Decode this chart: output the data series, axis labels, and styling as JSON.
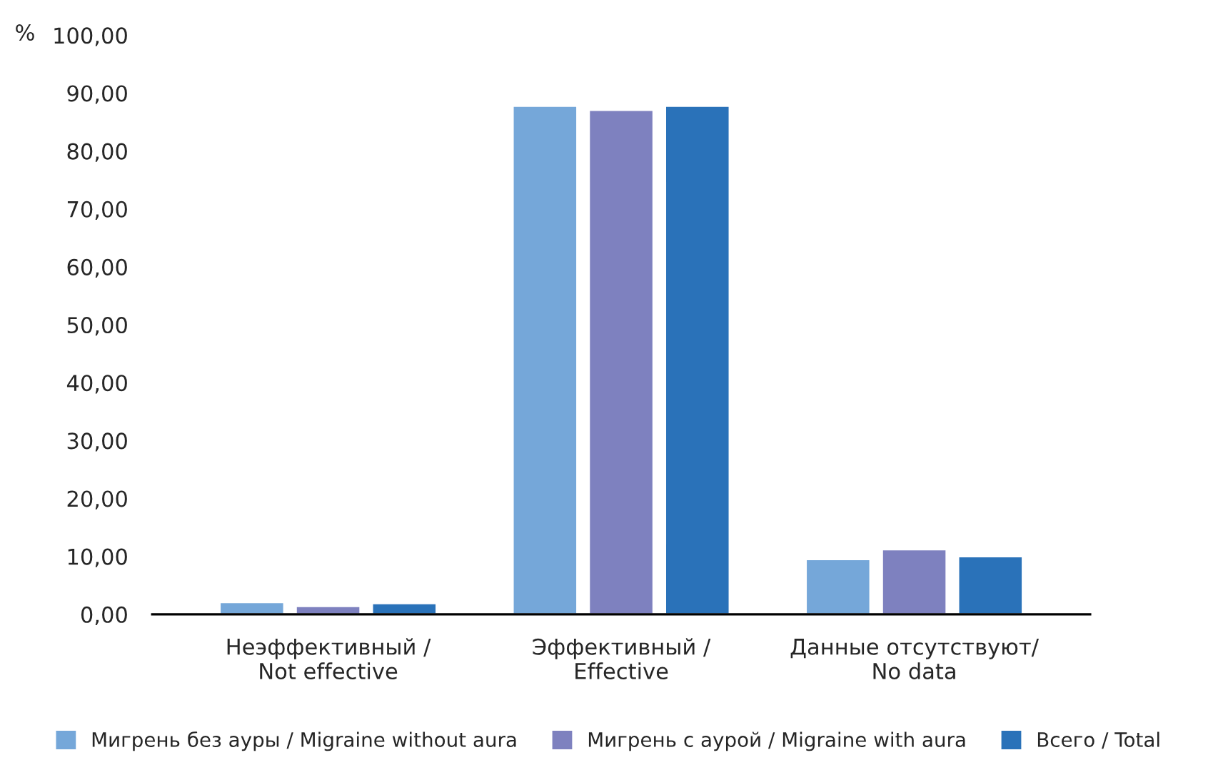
{
  "chart_data": {
    "type": "bar",
    "ylabel": "%",
    "categories": [
      "Неэффективный /\nNot effective",
      "Эффективный /\nEffective",
      "Данные отсутствуют/\nNo data"
    ],
    "series": [
      {
        "name": "Мигрень без ауры / Migraine without aura",
        "color": "#75a7d9",
        "values": [
          2.1,
          87.8,
          9.5
        ]
      },
      {
        "name": "Мигрень с аурой / Migraine with aura",
        "color": "#7e81bf",
        "values": [
          1.4,
          87.1,
          11.2
        ]
      },
      {
        "name": "Всего / Total",
        "color": "#2a72b9",
        "values": [
          1.9,
          87.8,
          10.0
        ]
      }
    ],
    "ylim": [
      0,
      100
    ],
    "yticks": [
      {
        "value": 0,
        "label": "0,00"
      },
      {
        "value": 10,
        "label": "10,00"
      },
      {
        "value": 20,
        "label": "20,00"
      },
      {
        "value": 30,
        "label": "30,00"
      },
      {
        "value": 40,
        "label": "40,00"
      },
      {
        "value": 50,
        "label": "50,00"
      },
      {
        "value": 60,
        "label": "60,00"
      },
      {
        "value": 70,
        "label": "70,00"
      },
      {
        "value": 80,
        "label": "80,00"
      },
      {
        "value": 90,
        "label": "90,00"
      },
      {
        "value": 100,
        "label": "100,00"
      }
    ],
    "grid": false,
    "legend": "bottom"
  }
}
